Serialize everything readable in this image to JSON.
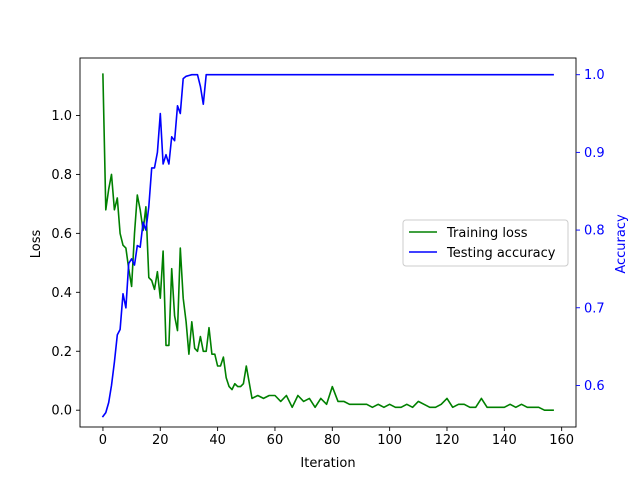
{
  "chart_data": {
    "type": "line",
    "xlabel": "Iteration",
    "ylabel_left": "Loss",
    "ylabel_right": "Accuracy",
    "xlim": [
      -8,
      165
    ],
    "ylim_left": [
      -0.057,
      1.195
    ],
    "ylim_right": [
      0.5465,
      1.0215
    ],
    "x_ticks": [
      0,
      20,
      40,
      60,
      80,
      100,
      120,
      140,
      160
    ],
    "y_ticks_left": [
      0.0,
      0.2,
      0.4,
      0.6,
      0.8,
      1.0
    ],
    "y_ticks_right": [
      0.6,
      0.7,
      0.8,
      0.9,
      1.0
    ],
    "y_tick_labels_left": [
      "0.0",
      "0.2",
      "0.4",
      "0.6",
      "0.8",
      "1.0"
    ],
    "y_tick_labels_right": [
      "0.6",
      "0.7",
      "0.8",
      "0.9",
      "1.0"
    ],
    "grid": false,
    "legend_position": "center-right",
    "colors": {
      "loss": "#008000",
      "accuracy": "#0000ff",
      "right_axis": "#0000ff"
    },
    "series": [
      {
        "name": "Training loss",
        "axis": "left",
        "color": "#008000",
        "x": [
          0,
          1,
          2,
          3,
          4,
          5,
          6,
          7,
          8,
          9,
          10,
          11,
          12,
          13,
          14,
          15,
          16,
          17,
          18,
          19,
          20,
          21,
          22,
          23,
          24,
          25,
          26,
          27,
          28,
          29,
          30,
          31,
          32,
          33,
          34,
          35,
          36,
          37,
          38,
          39,
          40,
          41,
          42,
          43,
          44,
          45,
          46,
          47,
          48,
          49,
          50,
          52,
          54,
          56,
          58,
          60,
          62,
          64,
          66,
          68,
          70,
          72,
          74,
          76,
          78,
          80,
          82,
          84,
          86,
          88,
          90,
          92,
          94,
          96,
          98,
          100,
          102,
          104,
          106,
          108,
          110,
          112,
          114,
          116,
          118,
          120,
          122,
          124,
          126,
          128,
          130,
          132,
          134,
          136,
          138,
          140,
          142,
          144,
          146,
          148,
          150,
          152,
          154,
          156,
          157
        ],
        "values": [
          1.14,
          0.68,
          0.75,
          0.8,
          0.68,
          0.72,
          0.6,
          0.56,
          0.55,
          0.48,
          0.42,
          0.6,
          0.73,
          0.68,
          0.61,
          0.69,
          0.45,
          0.44,
          0.41,
          0.47,
          0.38,
          0.54,
          0.22,
          0.22,
          0.48,
          0.32,
          0.27,
          0.55,
          0.38,
          0.3,
          0.19,
          0.3,
          0.21,
          0.2,
          0.25,
          0.2,
          0.2,
          0.28,
          0.19,
          0.19,
          0.15,
          0.15,
          0.18,
          0.11,
          0.08,
          0.07,
          0.09,
          0.08,
          0.08,
          0.09,
          0.15,
          0.04,
          0.05,
          0.04,
          0.05,
          0.05,
          0.03,
          0.05,
          0.01,
          0.05,
          0.03,
          0.04,
          0.01,
          0.04,
          0.02,
          0.08,
          0.03,
          0.03,
          0.02,
          0.02,
          0.02,
          0.02,
          0.01,
          0.02,
          0.01,
          0.02,
          0.01,
          0.01,
          0.02,
          0.01,
          0.03,
          0.02,
          0.01,
          0.01,
          0.02,
          0.04,
          0.01,
          0.02,
          0.02,
          0.01,
          0.01,
          0.04,
          0.01,
          0.01,
          0.01,
          0.01,
          0.02,
          0.01,
          0.02,
          0.01,
          0.01,
          0.01,
          0.0,
          0.0,
          0.0
        ]
      },
      {
        "name": "Testing accuracy",
        "axis": "right",
        "color": "#0000ff",
        "x": [
          0,
          1,
          2,
          3,
          4,
          5,
          6,
          7,
          8,
          9,
          10,
          11,
          12,
          13,
          14,
          15,
          16,
          17,
          18,
          19,
          20,
          21,
          22,
          23,
          24,
          25,
          26,
          27,
          28,
          29,
          30,
          31,
          32,
          33,
          34,
          35,
          36,
          37,
          38,
          39,
          40,
          50,
          60,
          80,
          100,
          120,
          140,
          157
        ],
        "values": [
          0.56,
          0.565,
          0.578,
          0.6,
          0.63,
          0.665,
          0.672,
          0.718,
          0.7,
          0.757,
          0.763,
          0.755,
          0.78,
          0.778,
          0.81,
          0.8,
          0.83,
          0.88,
          0.88,
          0.9,
          0.95,
          0.885,
          0.897,
          0.885,
          0.92,
          0.915,
          0.96,
          0.95,
          0.995,
          0.998,
          0.999,
          1.0,
          1.0,
          1.0,
          0.985,
          0.962,
          1.0,
          1.0,
          1.0,
          1.0,
          1.0,
          1.0,
          1.0,
          1.0,
          1.0,
          1.0,
          1.0,
          1.0
        ]
      }
    ]
  }
}
